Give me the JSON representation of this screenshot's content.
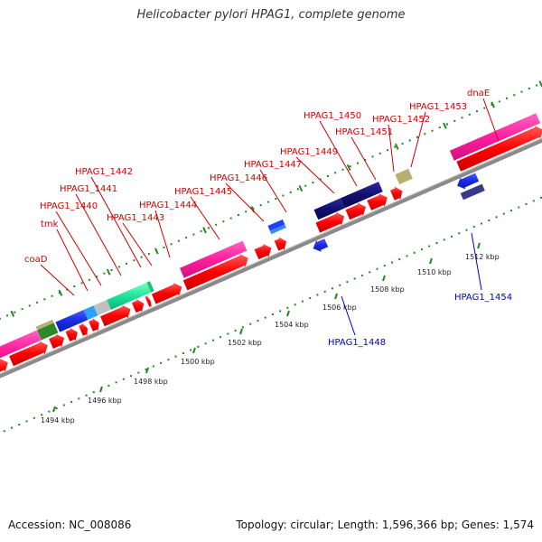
{
  "title": "Helicobacter pylori HPAG1, complete genome",
  "footer": {
    "accession": "Accession: NC_008086",
    "summary": "Topology: circular; Length: 1,596,366 bp; Genes: 1,574"
  },
  "colors": {
    "forward_cds": "#ff0000",
    "reverse_cds": "#1a2be0",
    "forward_label": "#cc0000",
    "reverse_label": "#0000cc",
    "backbone": "#8a8a8a",
    "tick_dots": "#1f8a1f"
  },
  "gene_labels_forward": [
    {
      "text": "coaD"
    },
    {
      "text": "tmk"
    },
    {
      "text": "HPAG1_1440"
    },
    {
      "text": "HPAG1_1441"
    },
    {
      "text": "HPAG1_1442"
    },
    {
      "text": "HPAG1_1443"
    },
    {
      "text": "HPAG1_1444"
    },
    {
      "text": "HPAG1_1445"
    },
    {
      "text": "HPAG1_1446"
    },
    {
      "text": "HPAG1_1447"
    },
    {
      "text": "HPAG1_1449"
    },
    {
      "text": "HPAG1_1450"
    },
    {
      "text": "HPAG1_1451"
    },
    {
      "text": "HPAG1_1452"
    },
    {
      "text": "HPAG1_1453"
    },
    {
      "text": "dnaE"
    }
  ],
  "gene_labels_reverse": [
    {
      "text": "HPAG1_1448"
    },
    {
      "text": "HPAG1_1454"
    }
  ],
  "scale_ticks": [
    {
      "label": "1494 kbp"
    },
    {
      "label": "1496 kbp"
    },
    {
      "label": "1498 kbp"
    },
    {
      "label": "1500 kbp"
    },
    {
      "label": "1502 kbp"
    },
    {
      "label": "1504 kbp"
    },
    {
      "label": "1506 kbp"
    },
    {
      "label": "1508 kbp"
    },
    {
      "label": "1510 kbp"
    },
    {
      "label": "1512 kbp"
    }
  ]
}
